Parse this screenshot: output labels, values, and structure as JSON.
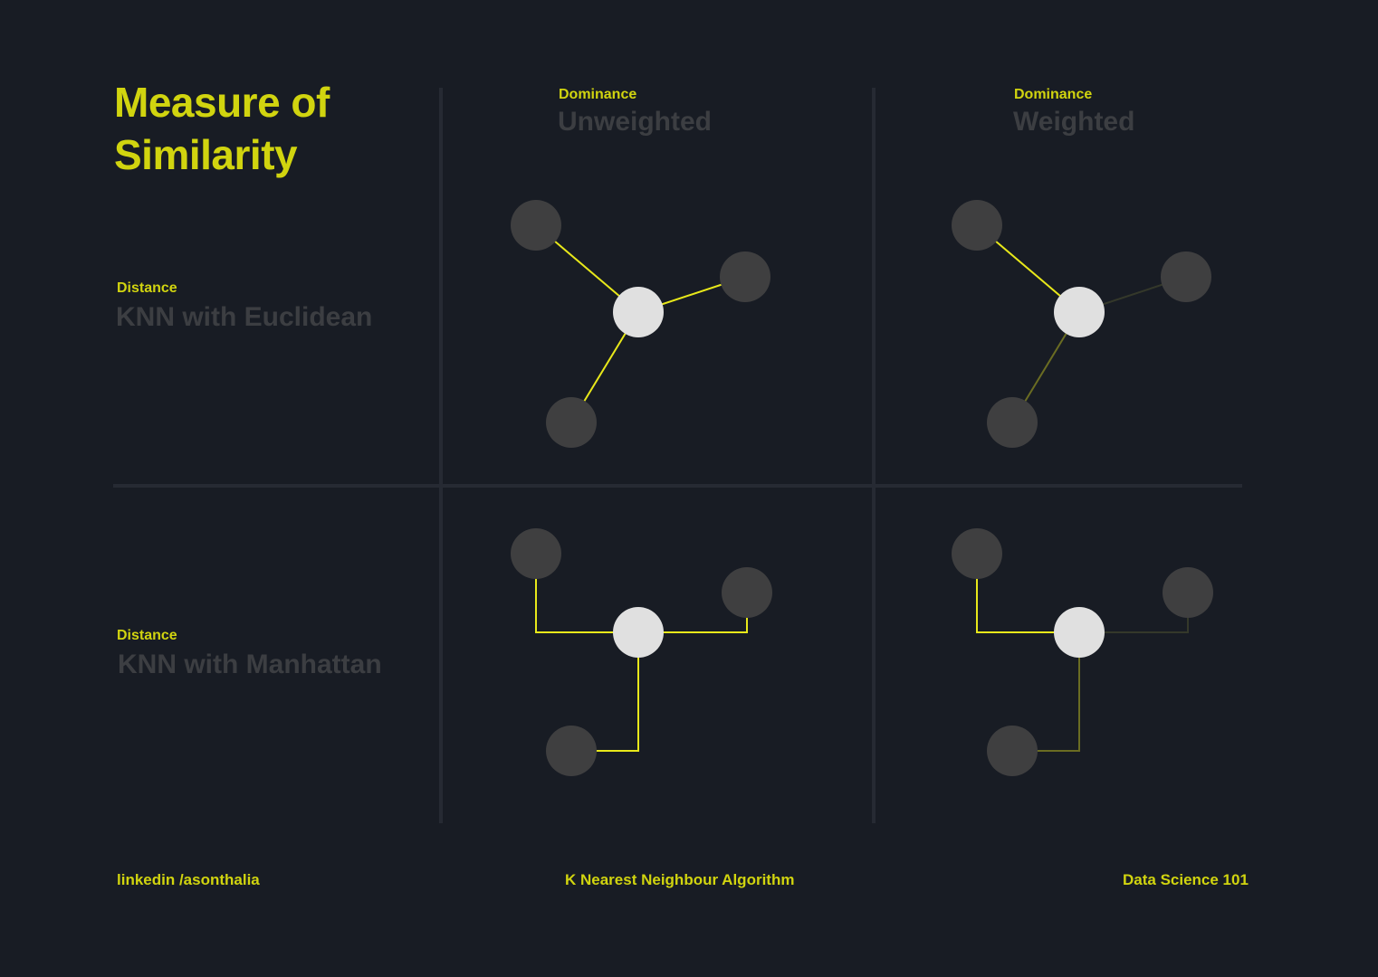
{
  "title": {
    "line1": "Measure of",
    "line2": "Similarity"
  },
  "columns": [
    {
      "kicker": "Dominance",
      "heading": "Unweighted"
    },
    {
      "kicker": "Dominance",
      "heading": "Weighted"
    }
  ],
  "rows": [
    {
      "kicker": "Distance",
      "heading": "KNN with Euclidean",
      "metric": "euclidean"
    },
    {
      "kicker": "Distance",
      "heading": "KNN with Manhattan",
      "metric": "manhattan"
    }
  ],
  "footer": {
    "left": "linkedin /asonthalia",
    "center": "K Nearest Neighbour Algorithm",
    "right": "Data Science 101"
  },
  "colors": {
    "background": "#181c24",
    "accent": "#d1d40f",
    "edge_strong": "#e8e81a",
    "edge_medium": "#6a6c22",
    "edge_weak": "#34382a",
    "muted_text": "#3c3e42",
    "grid_line": "#262a33",
    "query_node": "#e0e0e0",
    "neighbor_node": "#3f3f40"
  }
}
